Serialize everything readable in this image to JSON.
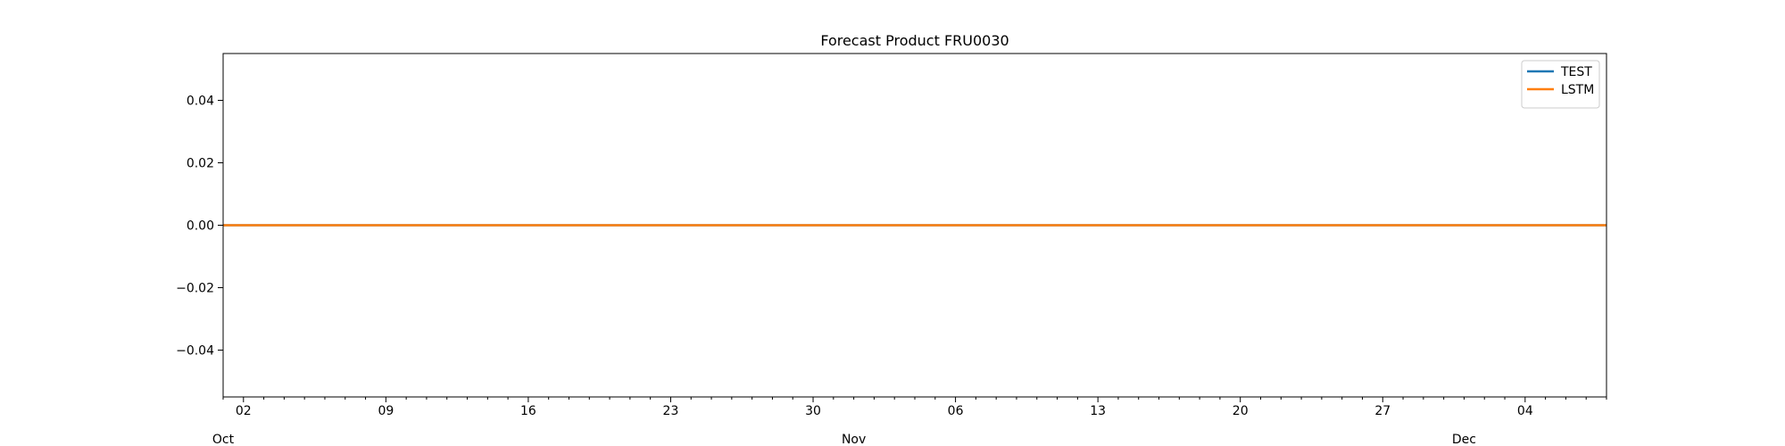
{
  "chart_data": {
    "type": "line",
    "title": "Forecast Product FRU0030",
    "xlabel": "",
    "ylabel": "",
    "x_axis": {
      "type": "date",
      "range": [
        "2023-10-01",
        "2023-12-08"
      ],
      "major_ticks": [
        {
          "date": "2023-10-02",
          "label": "02"
        },
        {
          "date": "2023-10-09",
          "label": "09"
        },
        {
          "date": "2023-10-16",
          "label": "16"
        },
        {
          "date": "2023-10-23",
          "label": "23"
        },
        {
          "date": "2023-10-30",
          "label": "30"
        },
        {
          "date": "2023-11-06",
          "label": "06"
        },
        {
          "date": "2023-11-13",
          "label": "13"
        },
        {
          "date": "2023-11-20",
          "label": "20"
        },
        {
          "date": "2023-11-27",
          "label": "27"
        },
        {
          "date": "2023-12-04",
          "label": "04"
        }
      ],
      "month_labels": [
        {
          "date": "2023-10-01",
          "label": "Oct"
        },
        {
          "date": "2023-11-01",
          "label": "Nov"
        },
        {
          "date": "2023-12-01",
          "label": "Dec"
        }
      ]
    },
    "y_axis": {
      "range": [
        -0.055,
        0.055
      ],
      "ticks": [
        {
          "value": 0.04,
          "label": "0.04"
        },
        {
          "value": 0.02,
          "label": "0.02"
        },
        {
          "value": 0.0,
          "label": "0.00"
        },
        {
          "value": -0.02,
          "label": "−0.02"
        },
        {
          "value": -0.04,
          "label": "−0.04"
        }
      ]
    },
    "grid": false,
    "legend": {
      "placement": "top-right"
    },
    "series": [
      {
        "name": "TEST",
        "color": "#1f77b4",
        "x": [
          "2023-10-01",
          "2023-12-08"
        ],
        "y": [
          0,
          0
        ]
      },
      {
        "name": "LSTM",
        "color": "#ff7f0e",
        "x": [
          "2023-10-01",
          "2023-12-08"
        ],
        "y": [
          0,
          0
        ]
      }
    ]
  }
}
